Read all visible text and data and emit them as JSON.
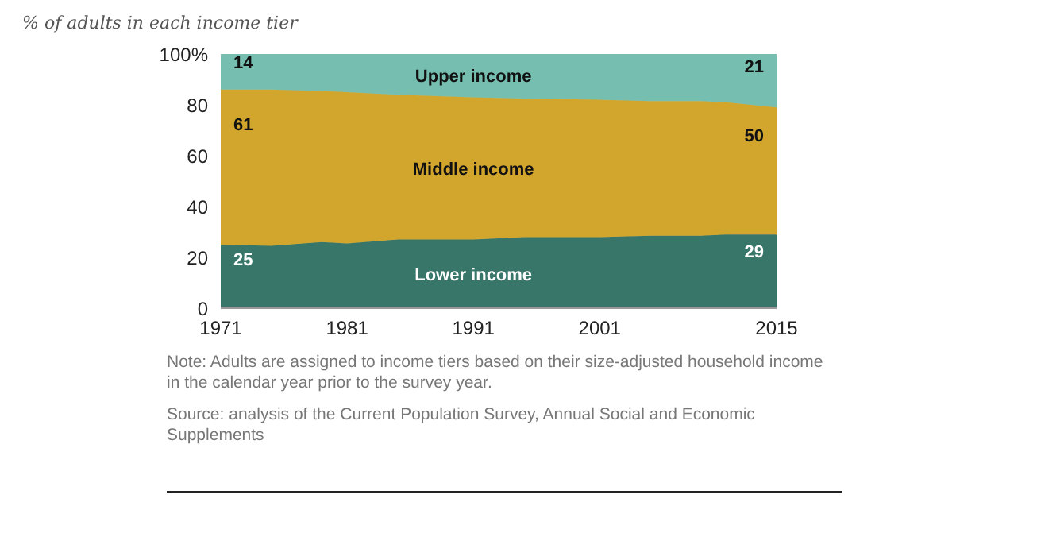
{
  "chart_data": {
    "type": "area",
    "stacked": true,
    "title": "% of adults in each income tier",
    "x": [
      1971,
      1975,
      1979,
      1981,
      1985,
      1991,
      1995,
      2001,
      2005,
      2009,
      2011,
      2015
    ],
    "xlim": [
      1971,
      2015
    ],
    "xticks": [
      1971,
      1981,
      1991,
      2001,
      2015
    ],
    "ylim": [
      0,
      100
    ],
    "yticks": [
      0,
      20,
      40,
      60,
      80,
      {
        "value": 100,
        "label": "100%"
      }
    ],
    "grid": false,
    "series": [
      {
        "name": "Lower income",
        "color": "#38766a",
        "values": [
          25,
          24.5,
          26,
          25.5,
          27,
          27,
          28,
          28,
          28.5,
          28.5,
          29,
          29
        ],
        "value_labels": [
          "25",
          null,
          null,
          null,
          null,
          null,
          null,
          null,
          null,
          null,
          null,
          "29"
        ]
      },
      {
        "name": "Middle income",
        "color": "#d2a52d",
        "values": [
          61,
          61.5,
          59.5,
          59.5,
          57,
          56,
          54.5,
          54,
          53,
          53,
          52,
          50
        ],
        "value_labels": [
          "61",
          null,
          null,
          null,
          null,
          null,
          null,
          null,
          null,
          null,
          null,
          "50"
        ]
      },
      {
        "name": "Upper income",
        "color": "#76bfb0",
        "values": [
          14,
          14,
          14.5,
          15,
          16,
          17,
          17.5,
          18,
          18.5,
          18.5,
          19,
          21
        ],
        "value_labels": [
          "14",
          null,
          null,
          null,
          null,
          null,
          null,
          null,
          null,
          null,
          null,
          "21"
        ]
      }
    ],
    "annotations": [
      "Note: Adults are assigned to income tiers based on their size-adjusted household income in the calendar year prior to the survey year.",
      "Source: analysis of the Current Population Survey, Annual Social and Economic Supplements"
    ]
  }
}
